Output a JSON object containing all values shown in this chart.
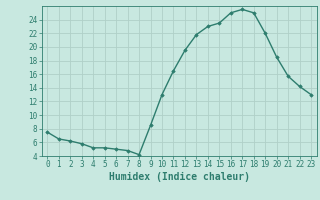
{
  "x": [
    0,
    1,
    2,
    3,
    4,
    5,
    6,
    7,
    8,
    9,
    10,
    11,
    12,
    13,
    14,
    15,
    16,
    17,
    18,
    19,
    20,
    21,
    22,
    23
  ],
  "y": [
    7.5,
    6.5,
    6.2,
    5.8,
    5.2,
    5.2,
    5.0,
    4.8,
    4.2,
    8.5,
    13.0,
    16.5,
    19.5,
    21.8,
    23.0,
    23.5,
    25.0,
    25.5,
    25.0,
    22.0,
    18.5,
    15.7,
    14.2,
    13.0
  ],
  "line_color": "#2e7d6e",
  "marker": "D",
  "marker_size": 1.8,
  "bg_color": "#c8e8e0",
  "grid_color": "#b0d0c8",
  "xlabel": "Humidex (Indice chaleur)",
  "ylim": [
    4,
    26
  ],
  "xlim": [
    -0.5,
    23.5
  ],
  "yticks": [
    4,
    6,
    8,
    10,
    12,
    14,
    16,
    18,
    20,
    22,
    24
  ],
  "xticks": [
    0,
    1,
    2,
    3,
    4,
    5,
    6,
    7,
    8,
    9,
    10,
    11,
    12,
    13,
    14,
    15,
    16,
    17,
    18,
    19,
    20,
    21,
    22,
    23
  ],
  "tick_label_color": "#2e7d6e",
  "tick_fontsize": 5.5,
  "xlabel_fontsize": 7.0,
  "line_width": 1.0
}
